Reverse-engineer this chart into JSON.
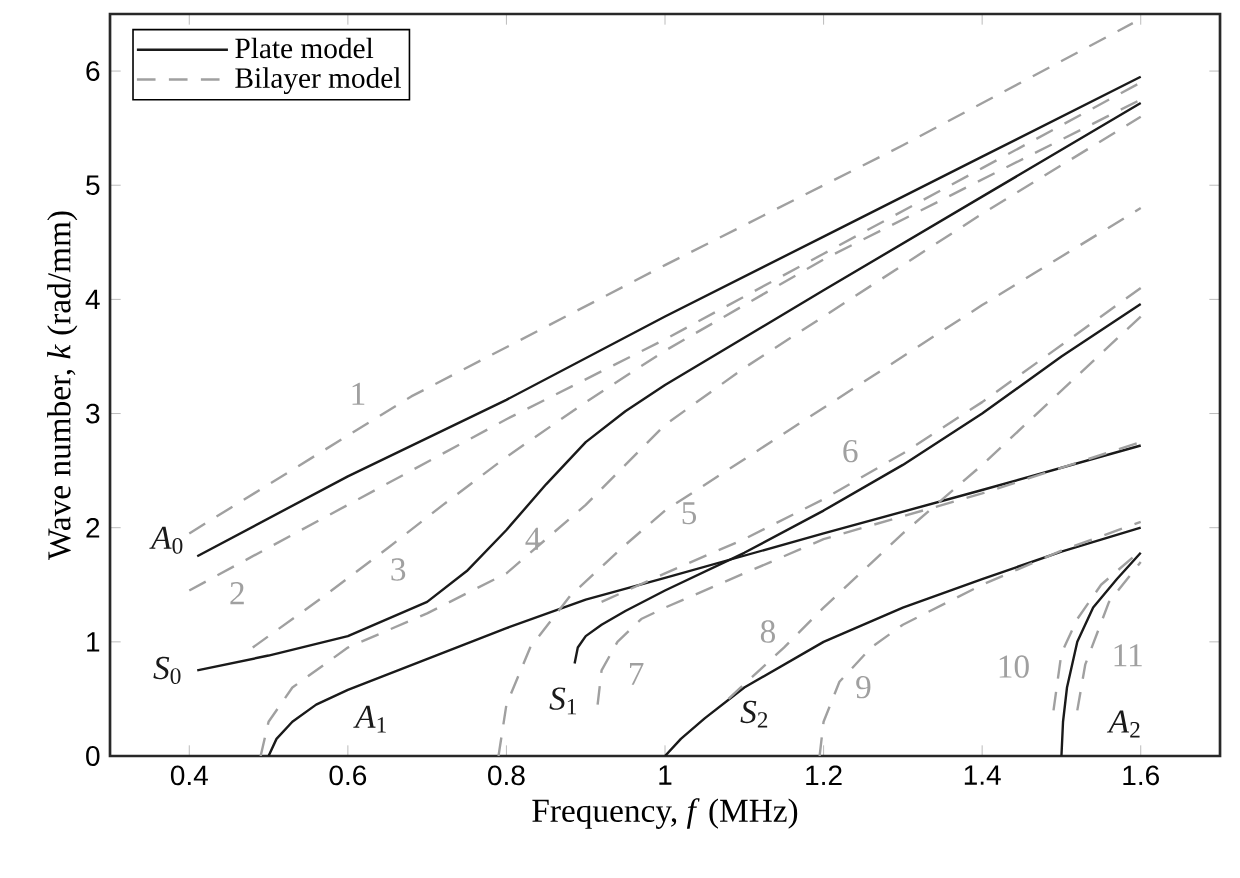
{
  "chart_data": {
    "type": "line",
    "xlabel": "Frequency, *f* (MHz)",
    "ylabel": "Wave number, *k* (rad/mm)",
    "xlim": [
      0.3,
      1.7
    ],
    "ylim": [
      0,
      6.5
    ],
    "xticks": [
      0.4,
      0.6,
      0.8,
      1,
      1.2,
      1.4,
      1.6
    ],
    "yticks": [
      0,
      1,
      2,
      3,
      4,
      5,
      6
    ],
    "grid": false,
    "legend": "top left",
    "series": [
      {
        "name": "Plate model",
        "color": "#1a1a1a",
        "line_style": "solid",
        "x": [
          0.41,
          0.6,
          0.8,
          1.0,
          1.2,
          1.4,
          1.6
        ],
        "values": [
          1.75,
          2.45,
          3.12,
          3.85,
          4.55,
          5.25,
          5.95
        ]
      },
      {
        "color": "#1a1a1a",
        "line_style": "solid",
        "x": [
          0.41,
          0.5,
          0.6,
          0.7,
          0.75,
          0.8,
          0.85,
          0.9,
          0.95,
          1.0,
          1.2,
          1.4,
          1.6
        ],
        "values": [
          0.75,
          0.88,
          1.05,
          1.35,
          1.62,
          1.98,
          2.38,
          2.75,
          3.02,
          3.25,
          4.08,
          4.9,
          5.72
        ]
      },
      {
        "color": "#1a1a1a",
        "line_style": "solid",
        "x": [
          0.5,
          0.51,
          0.53,
          0.56,
          0.6,
          0.7,
          0.8,
          0.9,
          1.0,
          1.2,
          1.4,
          1.6
        ],
        "values": [
          0,
          0.15,
          0.3,
          0.45,
          0.58,
          0.85,
          1.12,
          1.37,
          1.56,
          1.95,
          2.33,
          2.72
        ]
      },
      {
        "color": "#1a1a1a",
        "line_style": "solid",
        "x": [
          0.886,
          0.89,
          0.9,
          0.92,
          0.95,
          1.0,
          1.1,
          1.2,
          1.3,
          1.4,
          1.5,
          1.6
        ],
        "values": [
          0.81,
          0.95,
          1.05,
          1.15,
          1.27,
          1.45,
          1.78,
          2.15,
          2.55,
          3.0,
          3.5,
          3.96
        ]
      },
      {
        "color": "#1a1a1a",
        "line_style": "solid",
        "x": [
          1.0,
          1.02,
          1.05,
          1.1,
          1.2,
          1.3,
          1.4,
          1.5,
          1.6
        ],
        "values": [
          0,
          0.15,
          0.33,
          0.6,
          1.0,
          1.3,
          1.55,
          1.79,
          2.0
        ]
      },
      {
        "color": "#1a1a1a",
        "line_style": "solid",
        "x": [
          1.5,
          1.502,
          1.507,
          1.52,
          1.54,
          1.57,
          1.6
        ],
        "values": [
          0,
          0.3,
          0.6,
          1.0,
          1.3,
          1.55,
          1.78
        ]
      },
      {
        "name": "Bilayer model",
        "color": "#a0a0a0",
        "line_style": "dashed",
        "x": [
          0.4,
          0.68,
          1.0,
          1.3,
          1.59
        ],
        "values": [
          1.95,
          3.15,
          4.3,
          5.35,
          6.42
        ]
      },
      {
        "color": "#a0a0a0",
        "line_style": "dashed",
        "x": [
          0.4,
          0.6,
          0.8,
          1.0,
          1.2,
          1.4,
          1.6
        ],
        "values": [
          1.45,
          2.2,
          2.95,
          3.65,
          4.4,
          5.15,
          5.9
        ]
      },
      {
        "color": "#a0a0a0",
        "line_style": "dashed",
        "x": [
          0.48,
          0.57,
          0.65,
          0.72,
          0.8,
          0.9,
          1.0,
          1.2,
          1.4,
          1.6
        ],
        "values": [
          0.95,
          1.4,
          1.82,
          2.2,
          2.62,
          3.1,
          3.55,
          4.35,
          5.05,
          5.75
        ]
      },
      {
        "color": "#a0a0a0",
        "line_style": "dashed",
        "x": [
          0.49,
          0.5,
          0.53,
          0.6,
          0.7,
          0.8,
          0.9,
          1.0,
          1.1,
          1.2,
          1.4,
          1.6
        ],
        "values": [
          0,
          0.3,
          0.6,
          0.95,
          1.25,
          1.6,
          2.2,
          2.9,
          3.4,
          3.85,
          4.75,
          5.6
        ]
      },
      {
        "color": "#a0a0a0",
        "line_style": "dashed",
        "x": [
          0.79,
          0.8,
          0.83,
          0.88,
          0.95,
          1.0,
          1.1,
          1.2,
          1.4,
          1.6
        ],
        "values": [
          0,
          0.45,
          0.95,
          1.4,
          1.85,
          2.15,
          2.6,
          3.05,
          3.95,
          4.8
        ]
      },
      {
        "color": "#a0a0a0",
        "line_style": "dashed",
        "x": [
          0.92,
          1.0,
          1.1,
          1.2,
          1.3,
          1.4,
          1.5,
          1.6
        ],
        "values": [
          1.35,
          1.6,
          1.9,
          2.25,
          2.65,
          3.1,
          3.6,
          4.1
        ]
      },
      {
        "color": "#a0a0a0",
        "line_style": "dashed",
        "x": [
          0.915,
          0.92,
          0.94,
          0.97,
          1.0,
          1.2,
          1.4,
          1.6
        ],
        "values": [
          0.45,
          0.75,
          1.0,
          1.2,
          1.3,
          1.9,
          2.3,
          2.75
        ]
      },
      {
        "color": "#a0a0a0",
        "line_style": "dashed",
        "x": [
          1.08,
          1.15,
          1.2,
          1.3,
          1.4,
          1.5,
          1.6
        ],
        "values": [
          0.5,
          0.95,
          1.3,
          1.95,
          2.55,
          3.2,
          3.85
        ]
      },
      {
        "color": "#a0a0a0",
        "line_style": "dashed",
        "x": [
          1.195,
          1.2,
          1.22,
          1.26,
          1.3,
          1.4,
          1.5,
          1.6
        ],
        "values": [
          0,
          0.3,
          0.65,
          0.95,
          1.15,
          1.5,
          1.8,
          2.05
        ]
      },
      {
        "color": "#a0a0a0",
        "line_style": "dashed",
        "x": [
          1.49,
          1.5,
          1.52,
          1.55,
          1.6
        ],
        "values": [
          0.4,
          0.9,
          1.2,
          1.5,
          1.8
        ]
      },
      {
        "color": "#a0a0a0",
        "line_style": "dashed",
        "x": [
          1.52,
          1.53,
          1.56,
          1.6
        ],
        "values": [
          0.4,
          0.8,
          1.35,
          1.7
        ]
      }
    ],
    "annotations": [
      {
        "text": "*A*$_{0}$",
        "x": 0.41,
        "y": 1.75
      },
      {
        "text": "*S*$_{0}$",
        "x": 0.41,
        "y": 0.75
      },
      {
        "text": "*A*$_{1}$",
        "x": 0.6,
        "y": 0.58
      },
      {
        "text": "*S*$_{1}$",
        "x": 0.886,
        "y": 0.81
      },
      {
        "text": "*S*$_{2}$",
        "x": 1.1,
        "y": 0.6
      },
      {
        "text": "*A*$_{2}$",
        "x": 1.5,
        "y": 0
      },
      {
        "text": "1",
        "x": 0.68,
        "y": 3.15
      },
      {
        "text": "2",
        "x": 0.4,
        "y": 1.45
      },
      {
        "text": "3",
        "x": 0.65,
        "y": 1.82
      },
      {
        "text": "4",
        "x": 0.8,
        "y": 1.6
      },
      {
        "text": "5",
        "x": 1.0,
        "y": 2.15
      },
      {
        "text": "6",
        "x": 1.2,
        "y": 2.25
      },
      {
        "text": "7",
        "x": 0.94,
        "y": 1.0
      },
      {
        "text": "8",
        "x": 1.15,
        "y": 0.95
      },
      {
        "text": "9",
        "x": 1.22,
        "y": 0.65
      },
      {
        "text": "10",
        "x": 1.5,
        "y": 0.9
      },
      {
        "text": "11",
        "x": 1.56,
        "y": 1.35
      }
    ]
  }
}
